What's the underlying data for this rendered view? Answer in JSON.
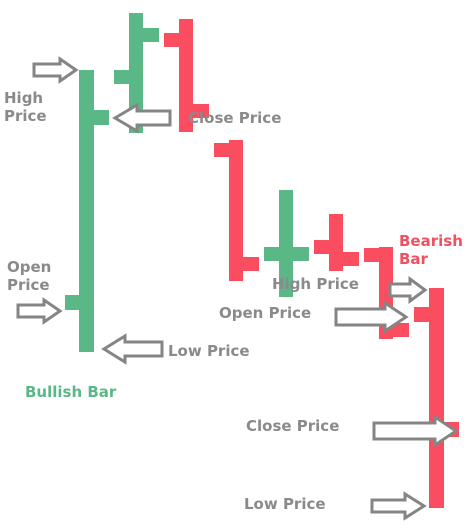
{
  "colors": {
    "bullish": "#5ab887",
    "bearish": "#fa4d5f",
    "arrow": "#858585",
    "label": "#8a8a8a"
  },
  "labels": {
    "high_price_left_1": "High",
    "high_price_left_2": "Price",
    "close_price_top": "Close Price",
    "open_price_left_1": "Open",
    "open_price_left_2": "Price",
    "low_price_left": "Low Price",
    "bullish_bar": "Bullish Bar",
    "bearish_bar_1": "Bearish",
    "bearish_bar_2": "Bar",
    "high_price_right": "High Price",
    "open_price_right": "Open Price",
    "close_price_right": "Close Price",
    "low_price_right": "Low Price"
  },
  "icons": {
    "arrow": "outline-arrow-icon"
  }
}
